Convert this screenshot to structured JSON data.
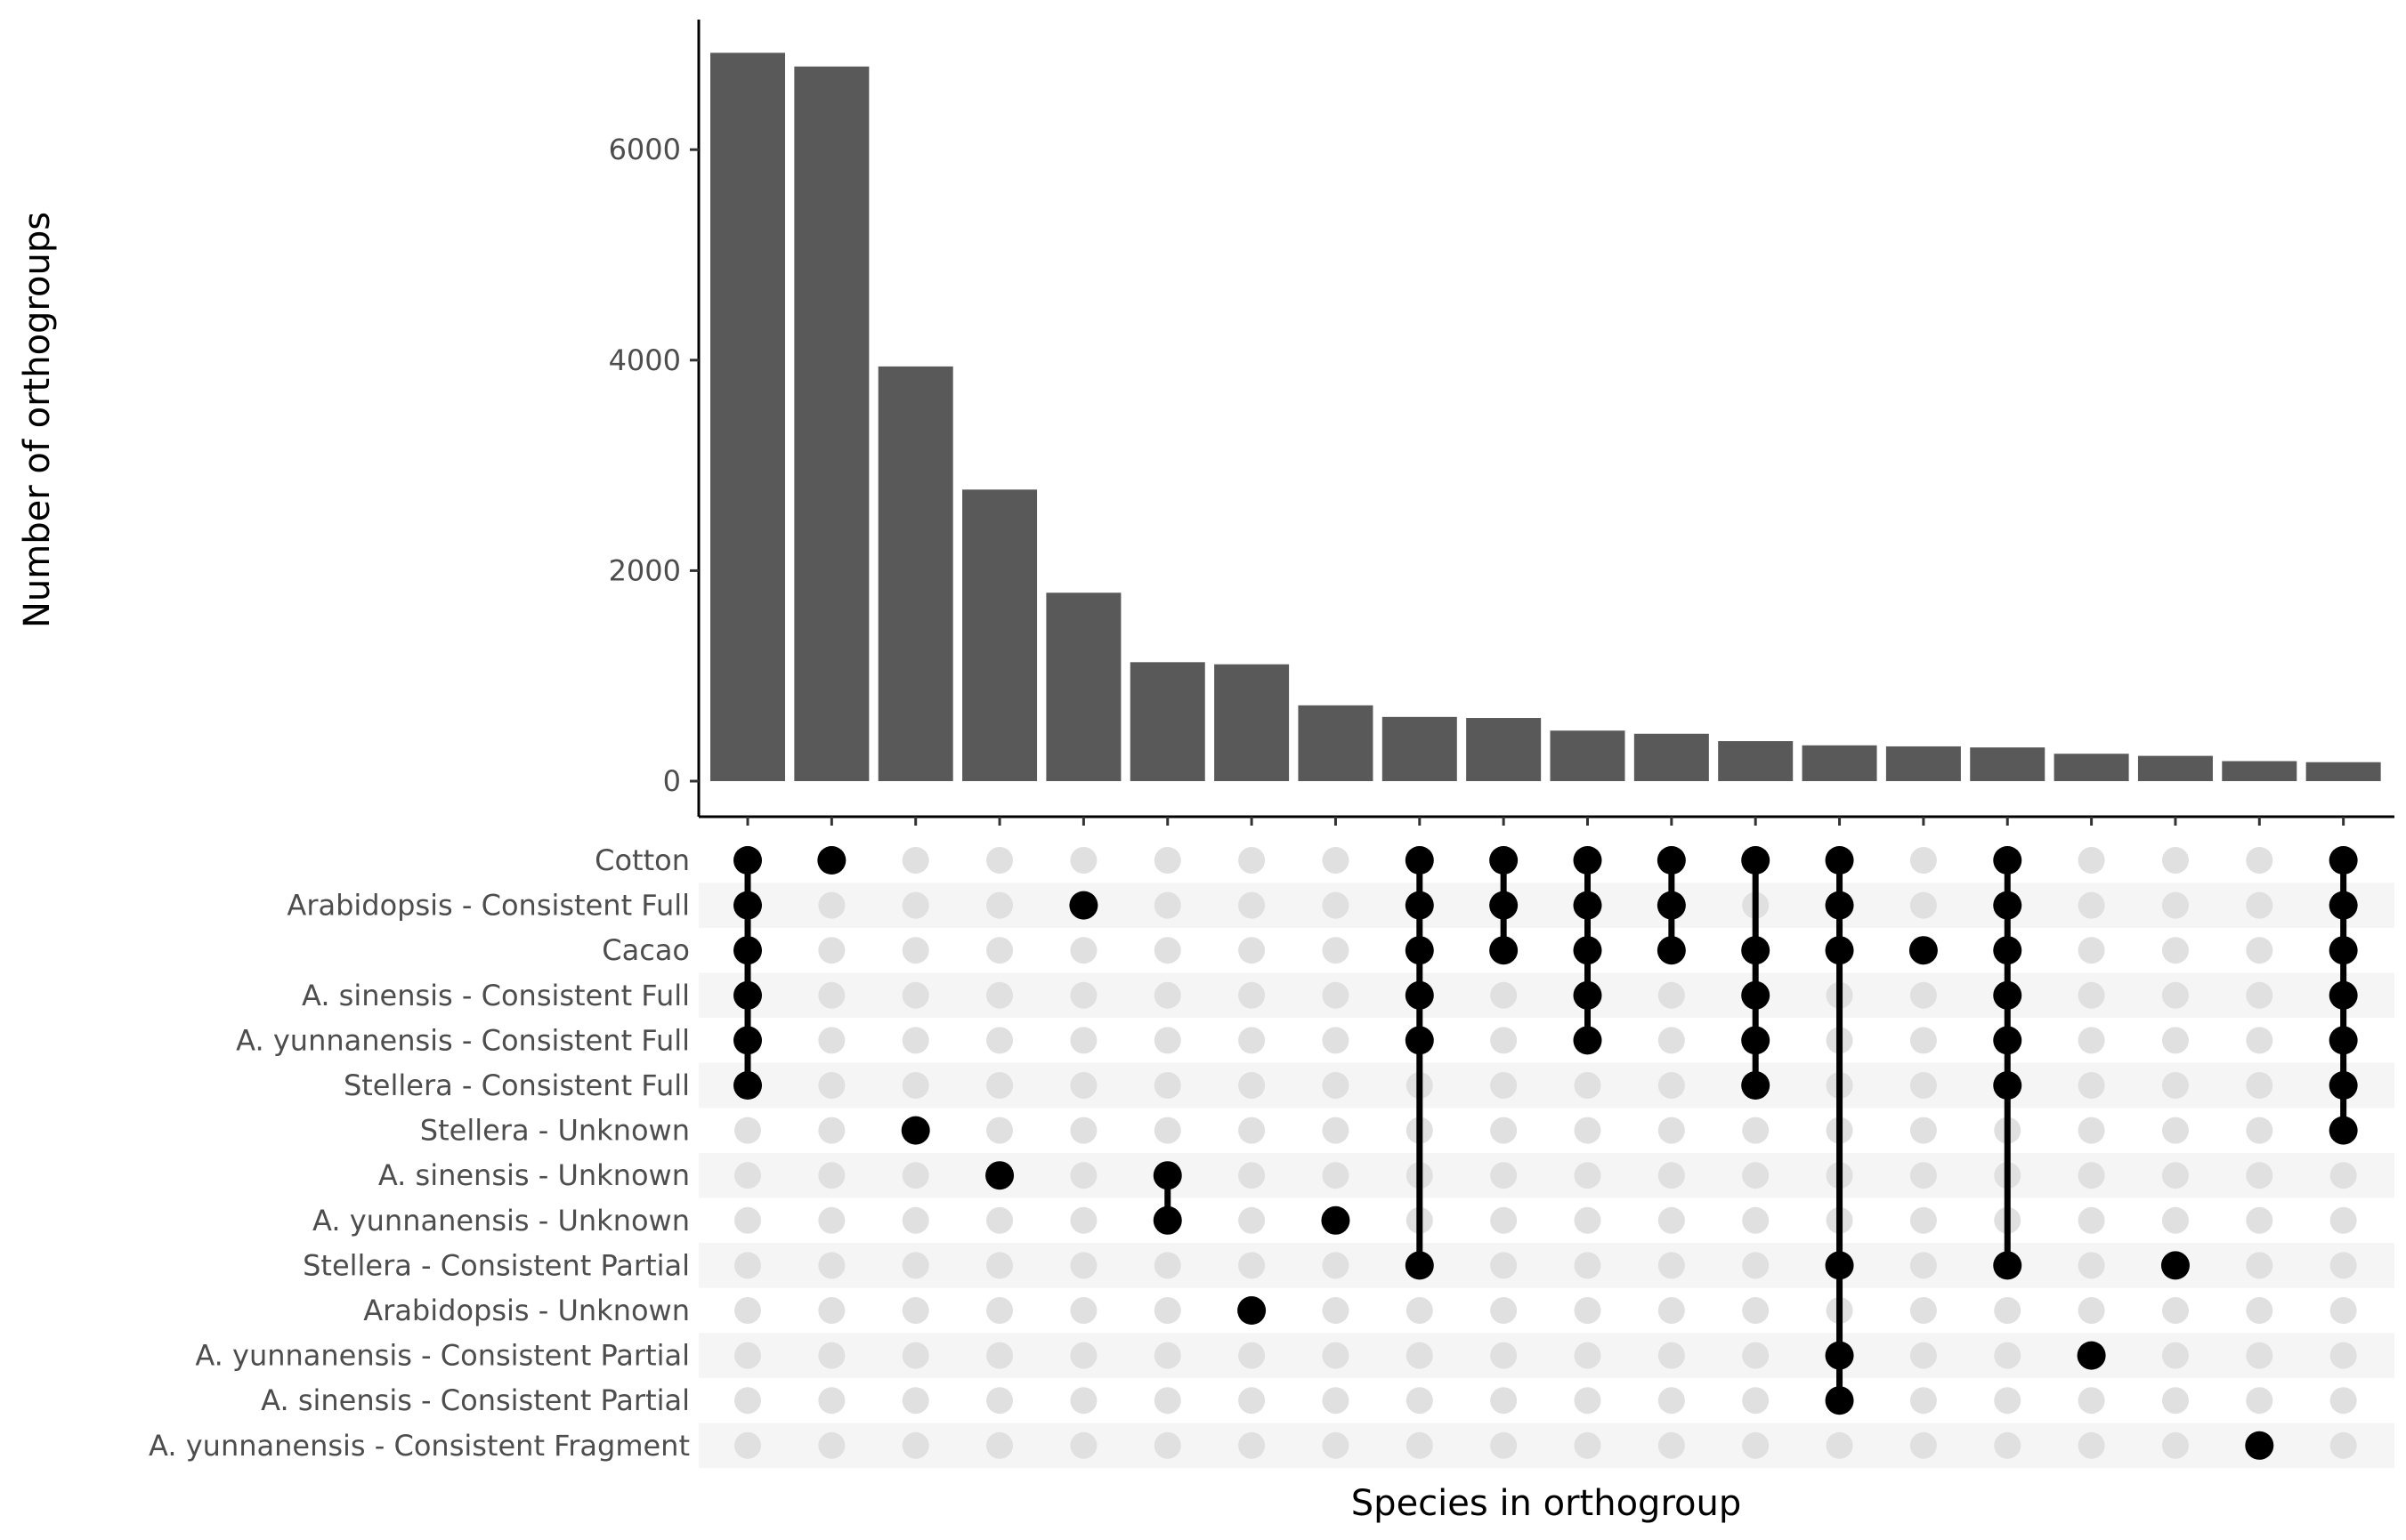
{
  "chart_data": {
    "type": "bar",
    "subtype": "upset",
    "ylabel": "Number of orthogroups",
    "xlabel": "Species in orthogroup",
    "ylim": [
      0,
      7200
    ],
    "yticks": [
      0,
      2000,
      4000,
      6000
    ],
    "grid": false,
    "sets": [
      "Cotton",
      "Arabidopsis - Consistent Full",
      "Cacao",
      "A. sinensis - Consistent Full",
      "A. yunnanensis - Consistent Full",
      "Stellera - Consistent Full",
      "Stellera - Unknown",
      "A. sinensis - Unknown",
      "A. yunnanensis - Unknown",
      "Stellera - Consistent Partial",
      "Arabidopsis - Unknown",
      "A. yunnanensis - Consistent Partial",
      "A. sinensis - Consistent Partial",
      "A. yunnanensis - Consistent Fragment"
    ],
    "values": [
      6920,
      6790,
      3940,
      2770,
      1790,
      1130,
      1110,
      720,
      610,
      600,
      480,
      450,
      380,
      340,
      330,
      320,
      260,
      240,
      190,
      180
    ],
    "intersections": [
      [
        0,
        1,
        2,
        3,
        4,
        5
      ],
      [
        0
      ],
      [
        6
      ],
      [
        7
      ],
      [
        1
      ],
      [
        7,
        8
      ],
      [
        10
      ],
      [
        8
      ],
      [
        0,
        1,
        2,
        3,
        4,
        9
      ],
      [
        0,
        1,
        2
      ],
      [
        0,
        1,
        2,
        3,
        4
      ],
      [
        0,
        1,
        2
      ],
      [
        0,
        2,
        3,
        4,
        5
      ],
      [
        0,
        1,
        2,
        9,
        11,
        12
      ],
      [
        2
      ],
      [
        0,
        1,
        2,
        3,
        4,
        5,
        9
      ],
      [
        11
      ],
      [
        9
      ],
      [
        13
      ],
      [
        0,
        1,
        2,
        3,
        4,
        5,
        6
      ]
    ],
    "colors": {
      "bar": "#595959",
      "dot_active": "#000000",
      "dot_inactive": "#e0e0e0",
      "stripe": "#f5f5f5"
    }
  }
}
